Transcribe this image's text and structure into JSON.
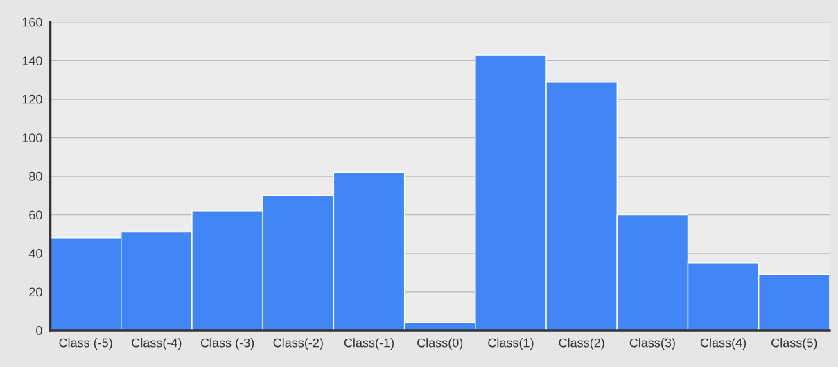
{
  "chart_data": {
    "type": "bar",
    "categories": [
      "Class (-5)",
      "Class(-4)",
      "Class (-3)",
      "Class(-2)",
      "Class(-1)",
      "Class(0)",
      "Class(1)",
      "Class(2)",
      "Class(3)",
      "Class(4)",
      "Class(5)"
    ],
    "values": [
      48,
      51,
      62,
      70,
      82,
      4,
      143,
      129,
      60,
      35,
      29
    ],
    "color": "#4285f4",
    "ylim": [
      0,
      160
    ],
    "yticks": [
      0,
      20,
      40,
      60,
      80,
      100,
      120,
      140,
      160
    ],
    "grid": "y"
  }
}
